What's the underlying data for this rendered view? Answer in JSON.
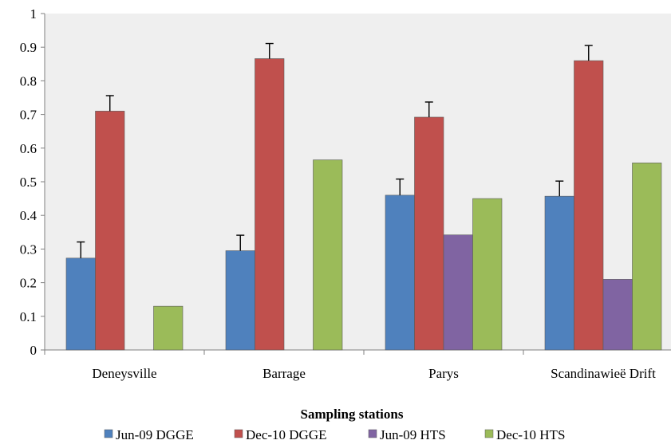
{
  "chart_data": {
    "type": "bar",
    "title": "",
    "xlabel": "Sampling stations",
    "ylabel": "",
    "ylim": [
      0,
      1
    ],
    "yticks": [
      "0",
      "0.1",
      "0.2",
      "0.3",
      "0.4",
      "0.5",
      "0.6",
      "0.7",
      "0.8",
      "0.9",
      "1"
    ],
    "categories": [
      "Deneysville",
      "Barrage",
      "Parys",
      "Scandinawieë Drift"
    ],
    "series": [
      {
        "name": "Jun-09 DGGE",
        "color": "#4F81BD",
        "values": [
          0.273,
          0.295,
          0.46,
          0.457
        ],
        "errors": [
          0.048,
          0.046,
          0.048,
          0.045
        ]
      },
      {
        "name": "Dec-10 DGGE",
        "color": "#C0504D",
        "values": [
          0.71,
          0.866,
          0.692,
          0.86
        ],
        "errors": [
          0.046,
          0.045,
          0.045,
          0.045
        ]
      },
      {
        "name": "Jun-09 HTS",
        "color": "#8064A2",
        "values": [
          0,
          0,
          0.342,
          0.21
        ],
        "errors": null
      },
      {
        "name": "Dec-10 HTS",
        "color": "#9BBB59",
        "values": [
          0.13,
          0.565,
          0.45,
          0.556
        ],
        "errors": null
      }
    ],
    "grid": false,
    "legend_position": "bottom"
  }
}
